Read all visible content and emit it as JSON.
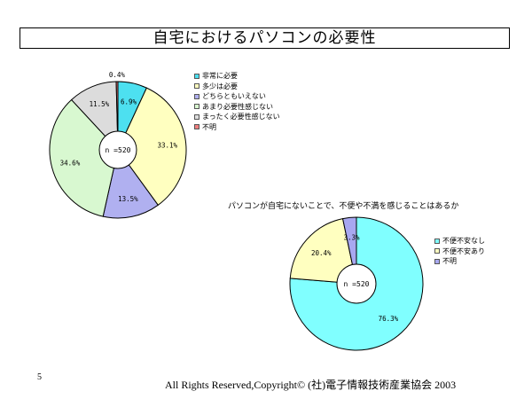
{
  "title": "自宅におけるパソコンの必要性",
  "page_number": "5",
  "copyright": "All Rights Reserved,Copyright© (社)電子情報技術産業協会  2003",
  "chart_data": [
    {
      "type": "pie",
      "title": "自宅におけるパソコンの必要性",
      "center_label": "n =520",
      "start_angle_deg": 0,
      "slices": [
        {
          "label": "非常に必要",
          "value": 6.9,
          "value_label": "6.9%",
          "color": "#4de0f0"
        },
        {
          "label": "多少は必要",
          "value": 33.1,
          "value_label": "33.1%",
          "color": "#ffffc0"
        },
        {
          "label": "どちらともいえない",
          "value": 13.5,
          "value_label": "13.5%",
          "color": "#b0b0f0"
        },
        {
          "label": "あまり必要性感じない",
          "value": 34.6,
          "value_label": "34.6%",
          "color": "#d8f8d0"
        },
        {
          "label": "まったく必要性感じない",
          "value": 11.5,
          "value_label": "11.5%",
          "color": "#dcdcdc"
        },
        {
          "label": "不明",
          "value": 0.4,
          "value_label": "0.4%",
          "color": "#f08080"
        }
      ]
    },
    {
      "type": "pie",
      "title": "パソコンが自宅にないことで、不便や不満を感じることはあるか",
      "center_label": "n =520",
      "start_angle_deg": 0,
      "slices": [
        {
          "label": "不便不安なし",
          "value": 76.3,
          "value_label": "76.3%",
          "color": "#80ffff"
        },
        {
          "label": "不便不安あり",
          "value": 20.4,
          "value_label": "20.4%",
          "color": "#ffffc0"
        },
        {
          "label": "不明",
          "value": 3.3,
          "value_label": "3.3%",
          "color": "#a8a8f0"
        }
      ]
    }
  ]
}
